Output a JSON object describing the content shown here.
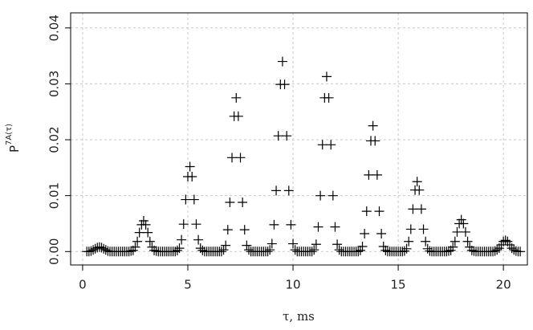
{
  "chart_data": {
    "type": "scatter",
    "xlabel": "τ, ms",
    "ylabel": "P",
    "ylabel_superscript": "7A(τ)",
    "marker": "plus",
    "color": "#000000",
    "grid": true,
    "xlim": [
      -0.57,
      21.14
    ],
    "ylim": [
      -0.0024,
      0.0427
    ],
    "xticks": [
      0,
      5,
      10,
      15,
      20
    ],
    "yticks": [
      {
        "value": 0,
        "label": "0.00"
      },
      {
        "value": 0.01,
        "label": "0.01"
      },
      {
        "value": 0.02,
        "label": "0.02"
      },
      {
        "value": 0.03,
        "label": "0.03"
      },
      {
        "value": 0.04,
        "label": "0.04"
      }
    ],
    "x": [
      0.2,
      0.3,
      0.4,
      0.5,
      0.6,
      0.7,
      0.8,
      0.9,
      1.0,
      1.1,
      1.2,
      1.3,
      1.4,
      1.5,
      1.6,
      1.7,
      1.8,
      1.9,
      2.0,
      2.1,
      2.2,
      2.3,
      2.4,
      2.5,
      2.6,
      2.7,
      2.8,
      2.9,
      3.0,
      3.1,
      3.2,
      3.3,
      3.4,
      3.5,
      3.6,
      3.7,
      3.8,
      3.9,
      4.0,
      4.1,
      4.2,
      4.3,
      4.4,
      4.5,
      4.6,
      4.7,
      4.8,
      4.9,
      5.0,
      5.1,
      5.2,
      5.3,
      5.4,
      5.5,
      5.6,
      5.7,
      5.8,
      5.9,
      6.0,
      6.1,
      6.2,
      6.3,
      6.4,
      6.5,
      6.6,
      6.7,
      6.8,
      6.9,
      7.0,
      7.1,
      7.2,
      7.3,
      7.4,
      7.5,
      7.6,
      7.7,
      7.8,
      7.9,
      8.0,
      8.1,
      8.2,
      8.3,
      8.4,
      8.5,
      8.6,
      8.7,
      8.8,
      8.9,
      9.0,
      9.1,
      9.2,
      9.3,
      9.4,
      9.5,
      9.6,
      9.7,
      9.8,
      9.9,
      10.0,
      10.1,
      10.2,
      10.3,
      10.4,
      10.5,
      10.6,
      10.7,
      10.8,
      10.9,
      11.0,
      11.1,
      11.2,
      11.3,
      11.4,
      11.5,
      11.6,
      11.7,
      11.8,
      11.9,
      12.0,
      12.1,
      12.2,
      12.3,
      12.4,
      12.5,
      12.6,
      12.7,
      12.8,
      12.9,
      13.0,
      13.1,
      13.2,
      13.3,
      13.4,
      13.5,
      13.6,
      13.7,
      13.8,
      13.9,
      14.0,
      14.1,
      14.2,
      14.3,
      14.4,
      14.5,
      14.6,
      14.7,
      14.8,
      14.9,
      15.0,
      15.1,
      15.2,
      15.3,
      15.4,
      15.5,
      15.6,
      15.7,
      15.8,
      15.9,
      16.0,
      16.1,
      16.2,
      16.3,
      16.4,
      16.5,
      16.6,
      16.7,
      16.8,
      16.9,
      17.0,
      17.1,
      17.2,
      17.3,
      17.4,
      17.5,
      17.6,
      17.7,
      17.8,
      17.9,
      18.0,
      18.1,
      18.2,
      18.3,
      18.4,
      18.5,
      18.6,
      18.7,
      18.8,
      18.9,
      19.0,
      19.1,
      19.2,
      19.3,
      19.4,
      19.5,
      19.6,
      19.7,
      19.8,
      19.9,
      20.0,
      20.1,
      20.2,
      20.3,
      20.4,
      20.5,
      20.6,
      20.7,
      20.8
    ],
    "values": [
      0,
      0,
      0.0001,
      0.0003,
      0.0005,
      0.0007,
      0.0008,
      0.0007,
      0.0005,
      0.0003,
      0.0001,
      0,
      0,
      0,
      0,
      0,
      0,
      0,
      0,
      0,
      0,
      0.0001,
      0.0002,
      0.0008,
      0.0018,
      0.0034,
      0.0048,
      0.0055,
      0.0048,
      0.0034,
      0.0018,
      0.0008,
      0.0002,
      0.0001,
      0,
      0,
      0,
      0,
      0,
      0,
      0,
      0,
      0,
      0.0002,
      0.0006,
      0.0021,
      0.0049,
      0.0093,
      0.0134,
      0.0152,
      0.0134,
      0.0093,
      0.0049,
      0.0021,
      0.0006,
      0.0002,
      0,
      0,
      0,
      0,
      0,
      0,
      0,
      0,
      0,
      0.0003,
      0.0011,
      0.0039,
      0.0088,
      0.0168,
      0.0242,
      0.0275,
      0.0242,
      0.0168,
      0.0088,
      0.0039,
      0.0011,
      0.0003,
      0,
      0,
      0,
      0,
      0,
      0,
      0,
      0,
      0,
      0.0003,
      0.0014,
      0.0048,
      0.0109,
      0.0207,
      0.0299,
      0.034,
      0.0299,
      0.0207,
      0.0109,
      0.0048,
      0.0014,
      0.0003,
      0,
      0,
      0,
      0,
      0,
      0,
      0,
      0,
      0.0003,
      0.0013,
      0.0044,
      0.01,
      0.0191,
      0.0275,
      0.0313,
      0.0275,
      0.0191,
      0.01,
      0.0044,
      0.0013,
      0.0003,
      0,
      0,
      0,
      0,
      0,
      0,
      0,
      0,
      0,
      0.0002,
      0.0009,
      0.0032,
      0.0072,
      0.0137,
      0.0198,
      0.0225,
      0.0198,
      0.0137,
      0.0072,
      0.0032,
      0.0009,
      0.0002,
      0,
      0,
      0,
      0,
      0,
      0,
      0,
      0,
      0.0001,
      0.0005,
      0.0018,
      0.004,
      0.0076,
      0.011,
      0.0125,
      0.011,
      0.0076,
      0.004,
      0.0018,
      0.0005,
      0.0001,
      0,
      0,
      0,
      0,
      0,
      0,
      0,
      0,
      0.0001,
      0.0002,
      0.0008,
      0.0018,
      0.0035,
      0.005,
      0.0057,
      0.005,
      0.0035,
      0.0018,
      0.0008,
      0.0002,
      0.0001,
      0,
      0,
      0,
      0,
      0,
      0,
      0,
      0,
      0,
      0.0001,
      0.0003,
      0.0006,
      0.0012,
      0.0018,
      0.002,
      0.0018,
      0.0012,
      0.0006,
      0.0003,
      0.0001,
      0,
      0
    ]
  }
}
